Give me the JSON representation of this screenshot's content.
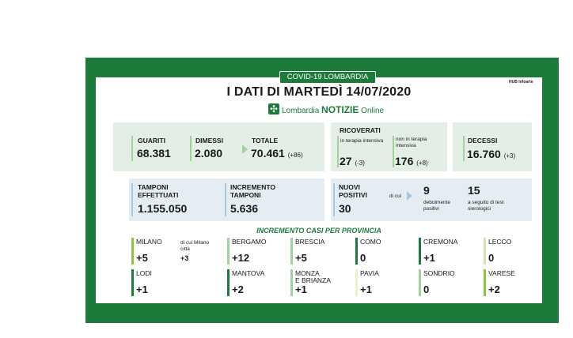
{
  "header": {
    "tag": "COVID-19 LOMBARDIA",
    "hub": "HUB Infoarte",
    "title": "I DATI DI MARTEDÌ 14/07/2020",
    "brand_prefix": "Lombardia",
    "brand_main": "NOTIZIE",
    "brand_suffix": "Online"
  },
  "stats": {
    "guariti": {
      "label": "GUARITI",
      "value": "68.381"
    },
    "dimessi": {
      "label": "DIMESSI",
      "value": "2.080"
    },
    "totale": {
      "label": "TOTALE",
      "value": "70.461",
      "change": "(+86)"
    },
    "ricoverati": {
      "label": "RICOVERATI",
      "terapia_label": "in terapia intensiva",
      "terapia_value": "27",
      "terapia_change": "(-3)",
      "non_terapia_label": "non in terapia intensiva",
      "non_terapia_value": "176",
      "non_terapia_change": "(+8)"
    },
    "decessi": {
      "label": "DECESSI",
      "value": "16.760",
      "change": "(+3)"
    },
    "tamponi": {
      "label": "TAMPONI EFFETTUATI",
      "value": "1.155.050"
    },
    "incremento": {
      "label": "INCREMENTO TAMPONI",
      "value": "5.636"
    },
    "nuovi": {
      "label": "NUOVI POSITIVI",
      "value": "30",
      "di_cui": "di cui",
      "deboli_value": "9",
      "deboli_label": "debolmente positivi",
      "sierologici_value": "15",
      "sierologici_label": "a seguito di test sierologici"
    }
  },
  "provinces": {
    "title": "INCREMENTO CASI PER PROVINCIA",
    "milano_sub_label": "di cui Milano città",
    "milano_sub_value": "+3",
    "items": [
      {
        "name": "MILANO",
        "value": "+5",
        "color": "#8cc63e"
      },
      {
        "name": "BERGAMO",
        "value": "+12",
        "color": "#a3d39c"
      },
      {
        "name": "BRESCIA",
        "value": "+5",
        "color": "#a3d39c"
      },
      {
        "name": "COMO",
        "value": "0",
        "color": "#1c7b3a"
      },
      {
        "name": "CREMONA",
        "value": "+1",
        "color": "#1c7b3a"
      },
      {
        "name": "LECCO",
        "value": "0",
        "color": "#cfe6a8"
      },
      {
        "name": "LODI",
        "value": "+1",
        "color": "#1c7b3a"
      },
      {
        "name": "MANTOVA",
        "value": "+2",
        "color": "#1c7b3a"
      },
      {
        "name": "MONZA\nE BRIANZA",
        "value": "+1",
        "color": "#a3d39c"
      },
      {
        "name": "PAVIA",
        "value": "+1",
        "color": "#e7f2d1"
      },
      {
        "name": "SONDRIO",
        "value": "0",
        "color": "#a3d39c"
      },
      {
        "name": "VARESE",
        "value": "+2",
        "color": "#8cc63e"
      }
    ]
  }
}
